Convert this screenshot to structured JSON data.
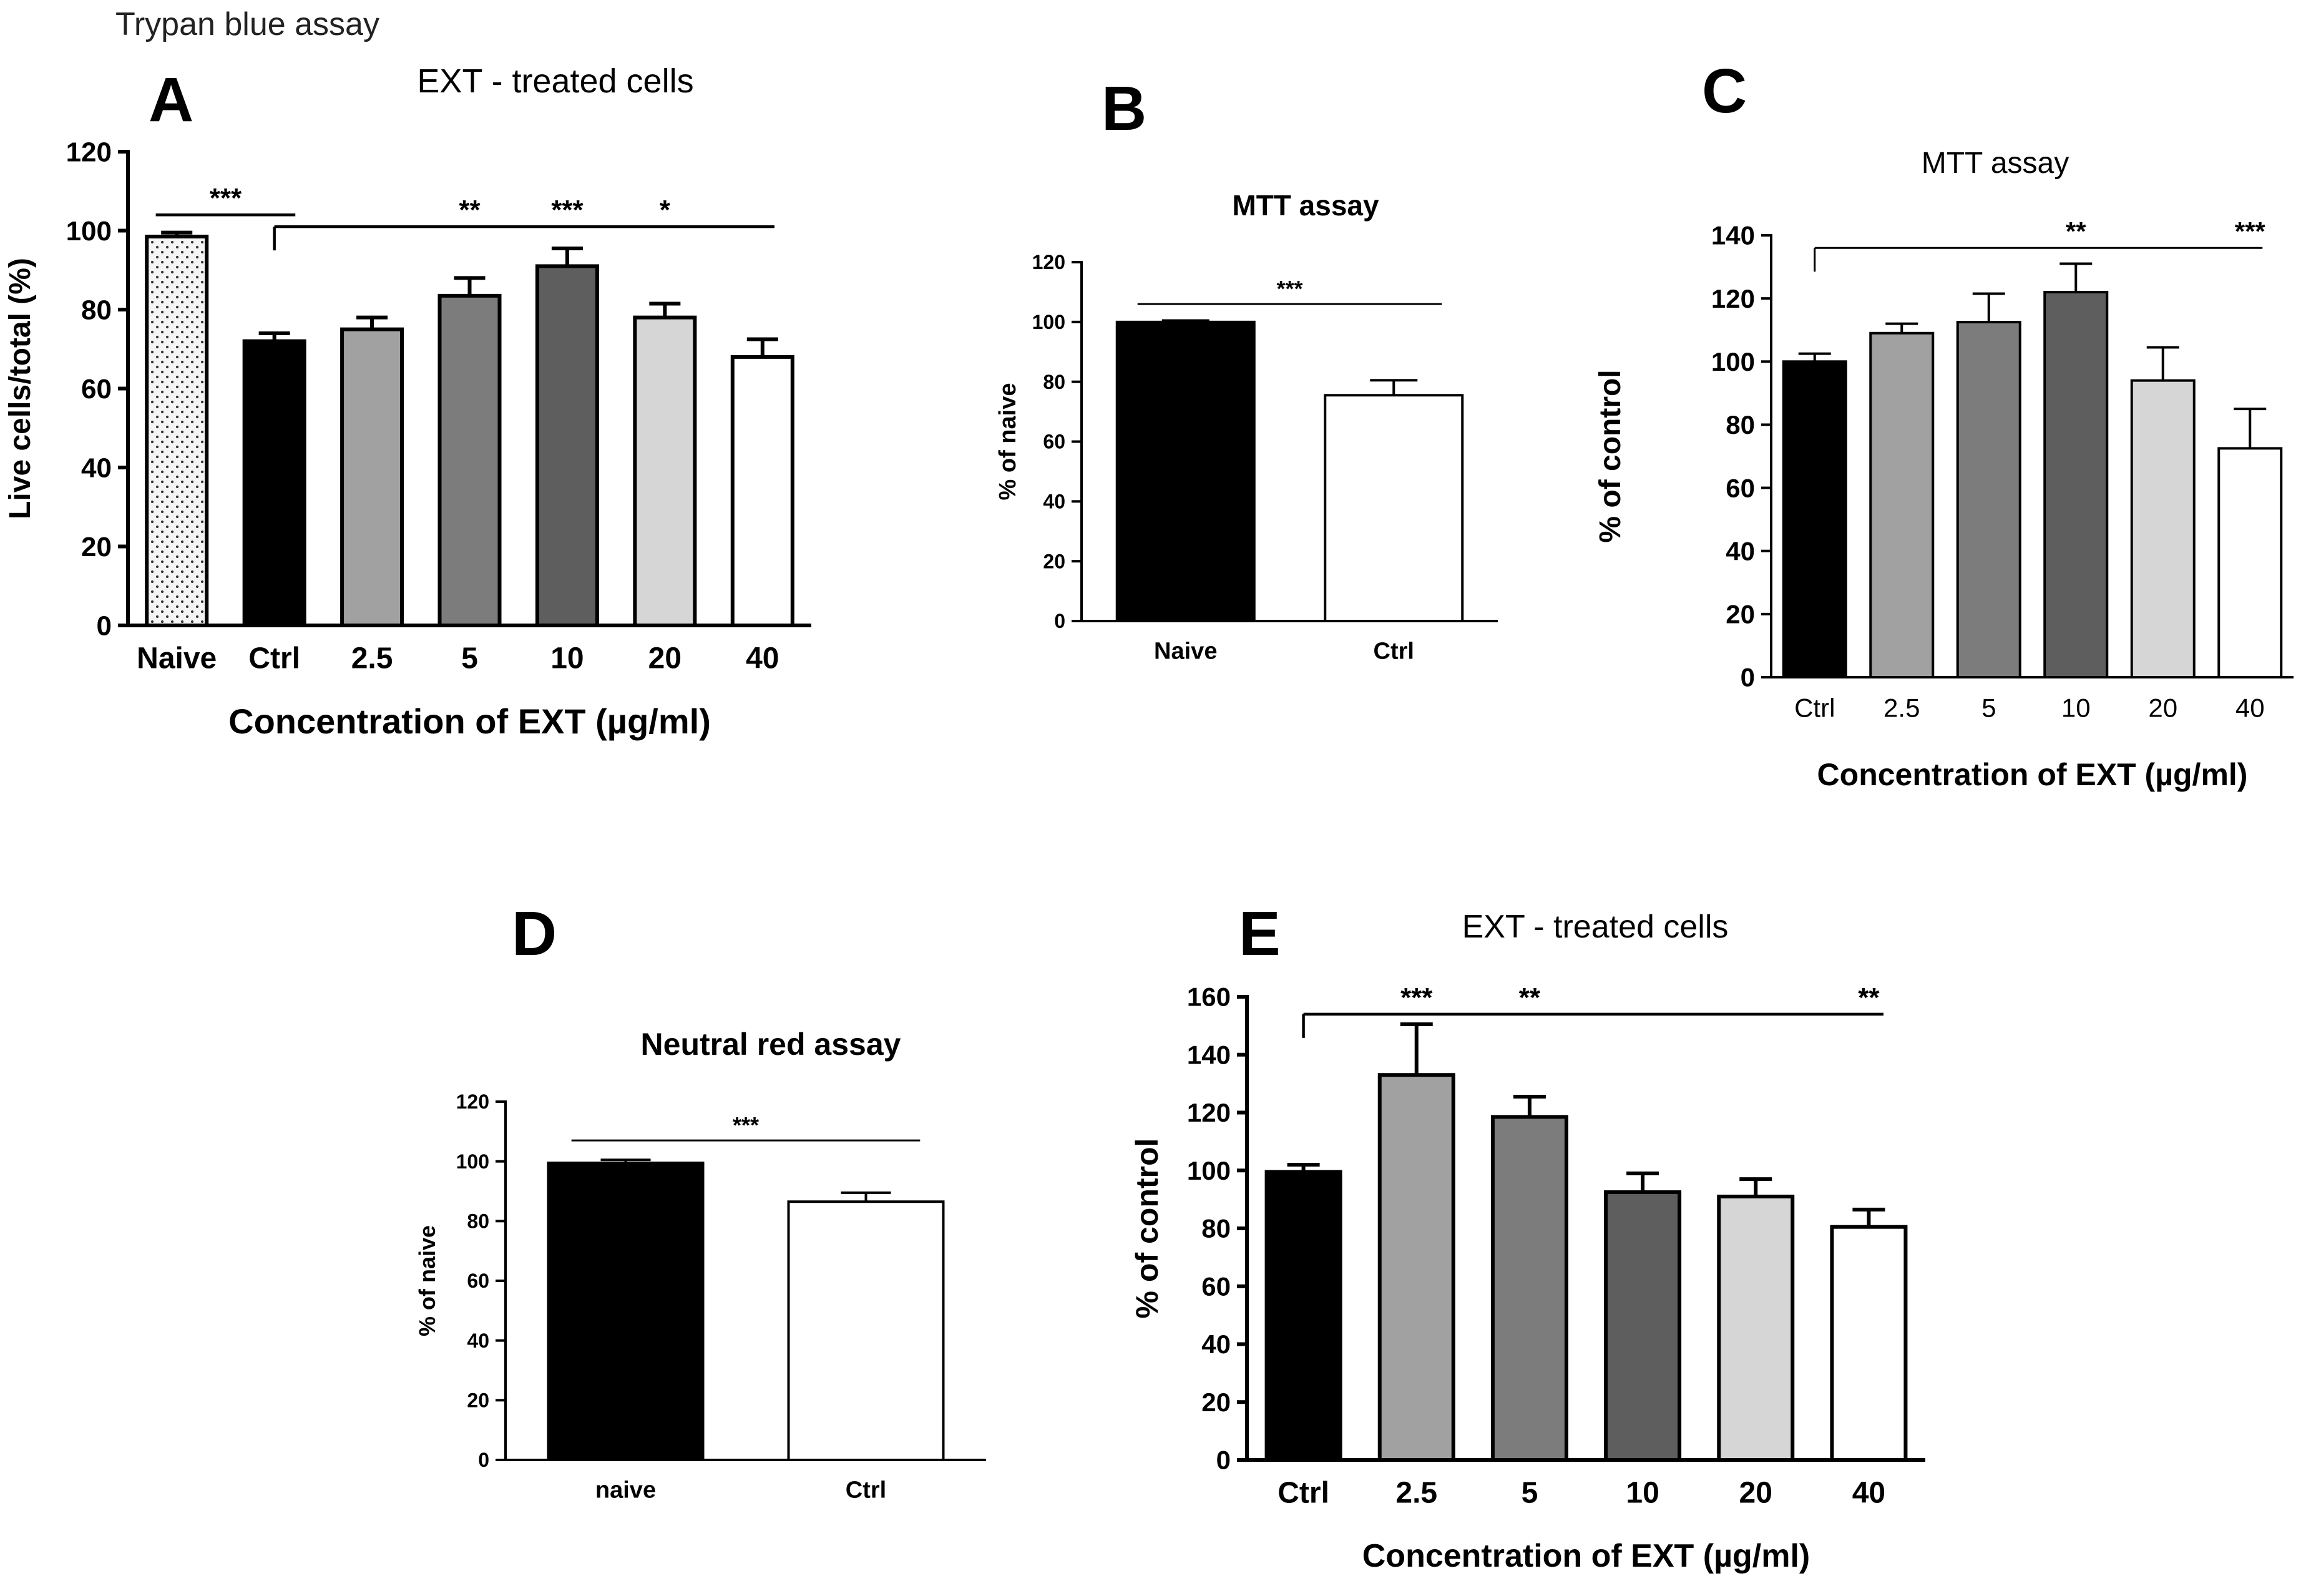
{
  "figure": {
    "caption_top_left": "Trypan blue assay"
  },
  "chart_data": [
    {
      "id": "A",
      "panel_letter": "A",
      "type": "bar",
      "title": "EXT - treated cells",
      "xlabel": "Concentration of EXT (µg/ml)",
      "ylabel": "Live cells/total (%)",
      "ylim": [
        0,
        120
      ],
      "yticks": [
        0,
        20,
        40,
        60,
        80,
        100,
        120
      ],
      "categories": [
        "Naive",
        "Ctrl",
        "2.5",
        "5",
        "10",
        "20",
        "40"
      ],
      "values": [
        98.5,
        72,
        75,
        83.5,
        91,
        78,
        68
      ],
      "errors": [
        1,
        2,
        3,
        4.5,
        4.5,
        3.5,
        4.5
      ],
      "fills": [
        "#f2f2f2",
        "#000000",
        "#a1a1a1",
        "#7c7c7c",
        "#5e5e5e",
        "#d6d6d6",
        "#ffffff"
      ],
      "patterned": [
        true,
        false,
        false,
        false,
        false,
        false,
        false
      ],
      "significance": [
        {
          "kind": "bracket",
          "from": 0,
          "to": 1,
          "y": 104,
          "label": "***"
        },
        {
          "kind": "line",
          "from": 1,
          "to": 6,
          "y": 101,
          "tick_at": 1
        },
        {
          "kind": "star",
          "at": 3,
          "label": "**"
        },
        {
          "kind": "star",
          "at": 4,
          "label": "***"
        },
        {
          "kind": "star",
          "at": 5,
          "label": "*"
        }
      ]
    },
    {
      "id": "B",
      "panel_letter": "B",
      "type": "bar",
      "title": "MTT assay",
      "xlabel": "",
      "ylabel": "% of naive",
      "ylim": [
        0,
        120
      ],
      "yticks": [
        0,
        20,
        40,
        60,
        80,
        100,
        120
      ],
      "categories": [
        "Naive",
        "Ctrl"
      ],
      "values": [
        100,
        75.5
      ],
      "errors": [
        0.5,
        5
      ],
      "fills": [
        "#000000",
        "#ffffff"
      ],
      "patterned": [
        false,
        false
      ],
      "significance": [
        {
          "kind": "bracket",
          "from": 0,
          "to": 1,
          "y": 106,
          "label": "***"
        }
      ]
    },
    {
      "id": "C",
      "panel_letter": "C",
      "type": "bar",
      "title": "MTT assay",
      "xlabel": "Concentration of EXT (µg/ml)",
      "ylabel": "% of control",
      "ylim": [
        0,
        140
      ],
      "yticks": [
        0,
        20,
        40,
        60,
        80,
        100,
        120,
        140
      ],
      "categories": [
        "Ctrl",
        "2.5",
        "5",
        "10",
        "20",
        "40"
      ],
      "values": [
        100,
        109,
        112.5,
        122,
        94,
        72.5
      ],
      "errors": [
        2.5,
        3,
        9,
        9,
        10.5,
        12.5
      ],
      "fills": [
        "#000000",
        "#a1a1a1",
        "#7c7c7c",
        "#5e5e5e",
        "#d6d6d6",
        "#ffffff"
      ],
      "patterned": [
        false,
        false,
        false,
        false,
        false,
        false
      ],
      "significance": [
        {
          "kind": "line",
          "from": 0,
          "to": 5,
          "y": 136,
          "tick_at": 0
        },
        {
          "kind": "star",
          "at": 3,
          "label": "**"
        },
        {
          "kind": "star",
          "at": 5,
          "label": "***"
        }
      ]
    },
    {
      "id": "D",
      "panel_letter": "D",
      "type": "bar",
      "title": "Neutral red assay",
      "xlabel": "",
      "ylabel": "% of naive",
      "ylim": [
        0,
        120
      ],
      "yticks": [
        0,
        20,
        40,
        60,
        80,
        100,
        120
      ],
      "categories": [
        "naive",
        "Ctrl"
      ],
      "values": [
        99.5,
        86.5
      ],
      "errors": [
        1,
        3
      ],
      "fills": [
        "#000000",
        "#ffffff"
      ],
      "patterned": [
        false,
        false
      ],
      "significance": [
        {
          "kind": "bracket",
          "from": 0,
          "to": 1,
          "y": 107,
          "label": "***"
        }
      ]
    },
    {
      "id": "E",
      "panel_letter": "E",
      "type": "bar",
      "title": "EXT - treated cells",
      "xlabel": "Concentration of EXT (µg/ml)",
      "ylabel": "% of control",
      "ylim": [
        0,
        160
      ],
      "yticks": [
        0,
        20,
        40,
        60,
        80,
        100,
        120,
        140,
        160
      ],
      "categories": [
        "Ctrl",
        "2.5",
        "5",
        "10",
        "20",
        "40"
      ],
      "values": [
        99.5,
        133,
        118.5,
        92.5,
        91,
        80.5
      ],
      "errors": [
        2.5,
        17.5,
        7,
        6.5,
        6,
        6
      ],
      "fills": [
        "#000000",
        "#a1a1a1",
        "#7c7c7c",
        "#5e5e5e",
        "#d6d6d6",
        "#ffffff"
      ],
      "patterned": [
        false,
        false,
        false,
        false,
        false,
        false
      ],
      "significance": [
        {
          "kind": "line",
          "from": 0,
          "to": 5,
          "y": 154,
          "tick_at": 0
        },
        {
          "kind": "star",
          "at": 1,
          "label": "***"
        },
        {
          "kind": "star",
          "at": 2,
          "label": "**"
        },
        {
          "kind": "star",
          "at": 5,
          "label": "**"
        }
      ]
    }
  ]
}
